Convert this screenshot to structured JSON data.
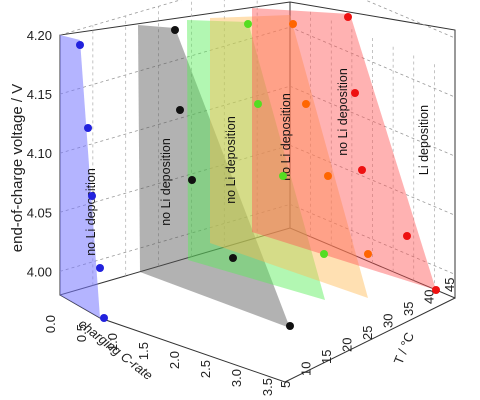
{
  "chart_data": {
    "type": "scatter",
    "projection": "3d",
    "axes": {
      "x": {
        "label": "charging C-rate",
        "range": [
          0,
          3.5
        ],
        "ticks": [
          "0.0",
          "0.5",
          "1.0",
          "1.5",
          "2.0",
          "2.5",
          "3.0",
          "3.5"
        ]
      },
      "y": {
        "label": "T / °C",
        "range": [
          5,
          45
        ],
        "ticks": [
          "5",
          "10",
          "15",
          "20",
          "25",
          "30",
          "35",
          "40",
          "45"
        ]
      },
      "z": {
        "label": "end-of-charge voltage / V",
        "range": [
          3.98,
          4.2
        ],
        "ticks": [
          "4.00",
          "4.05",
          "4.10",
          "4.15",
          "4.20"
        ]
      }
    },
    "grid": true,
    "series": [
      {
        "label": "no Li deposition",
        "color": "#2222dd",
        "points": [
          {
            "x": 0.4,
            "z": 4.195
          },
          {
            "x": 0.3,
            "z": 4.13
          },
          {
            "x": 0.25,
            "z": 4.075
          },
          {
            "x": 0.3,
            "z": 4.025
          },
          {
            "x": 0.35,
            "z": 3.99
          }
        ]
      },
      {
        "label": "no Li deposition",
        "color": "#111111",
        "points": [
          {
            "x": 1.0,
            "z": 4.2
          },
          {
            "x": 1.2,
            "z": 4.14
          },
          {
            "x": 1.4,
            "z": 4.09
          },
          {
            "x": 2.0,
            "z": 4.05
          },
          {
            "x": 3.6,
            "z": 3.98
          }
        ]
      },
      {
        "label": "no Li deposition",
        "color": "#55dd22",
        "points": [
          {
            "x": 1.05,
            "z": 4.2
          },
          {
            "x": 1.05,
            "z": 4.145
          },
          {
            "x": 1.2,
            "z": 4.09
          },
          {
            "x": 2.0,
            "z": 4.04
          }
        ]
      },
      {
        "label": "no Li deposition",
        "color": "#ff6600",
        "points": [
          {
            "x": 1.2,
            "z": 4.2
          },
          {
            "x": 1.3,
            "z": 4.145
          },
          {
            "x": 1.5,
            "z": 4.09
          },
          {
            "x": 2.0,
            "z": 4.04
          }
        ]
      },
      {
        "label": "Li deposition",
        "color": "#ee1111",
        "points": [
          {
            "x": 0.9,
            "z": 4.2
          },
          {
            "x": 1.05,
            "z": 4.145
          },
          {
            "x": 1.2,
            "z": 4.09
          },
          {
            "x": 1.5,
            "z": 4.04
          },
          {
            "x": 2.0,
            "z": 3.995
          }
        ]
      }
    ]
  },
  "region_labels": [
    {
      "text": "no Li deposition",
      "color": "#111111"
    },
    {
      "text": "no Li deposition",
      "color": "#111111"
    },
    {
      "text": "no Li deposition",
      "color": "#111111"
    },
    {
      "text": "no Li deposition",
      "color": "#111111"
    },
    {
      "text": "no Li deposition",
      "color": "#111111"
    },
    {
      "text": "Li deposition",
      "color": "#111111"
    }
  ]
}
